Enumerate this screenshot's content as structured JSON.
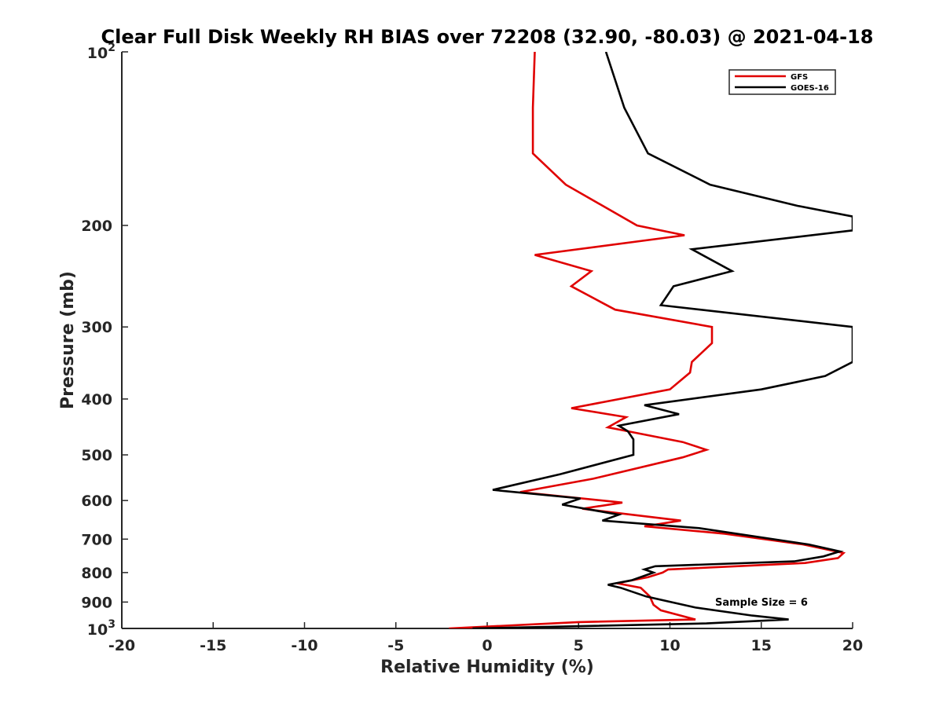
{
  "chart_data": {
    "type": "line",
    "title": "Clear Full Disk Weekly RH BIAS over 72208 (32.90, -80.03) @ 2021-04-18",
    "xlabel": "Relative Humidity (%)",
    "ylabel": "Pressure (mb)",
    "xlim": [
      -20,
      20
    ],
    "ylim": [
      100,
      1000
    ],
    "y_scale": "log",
    "y_reversed": true,
    "x_ticks": [
      "-20",
      "-15",
      "-10",
      "-5",
      "0",
      "5",
      "10",
      "15",
      "20"
    ],
    "y_ticks": [
      {
        "value": 100,
        "base": "10",
        "exp": "2"
      },
      {
        "value": 200,
        "label": "200"
      },
      {
        "value": 300,
        "label": "300"
      },
      {
        "value": 400,
        "label": "400"
      },
      {
        "value": 500,
        "label": "500"
      },
      {
        "value": 600,
        "label": "600"
      },
      {
        "value": 700,
        "label": "700"
      },
      {
        "value": 800,
        "label": "800"
      },
      {
        "value": 900,
        "label": "900"
      },
      {
        "value": 1000,
        "base": "10",
        "exp": "3"
      }
    ],
    "grid": false,
    "legend": "top-right",
    "annotation": "Sample Size = 6",
    "series": [
      {
        "name": "GFS",
        "color": "#e00000",
        "points": [
          [
            2.6,
            100
          ],
          [
            2.5,
            125
          ],
          [
            2.5,
            150
          ],
          [
            4.3,
            170
          ],
          [
            8.2,
            200
          ],
          [
            10.8,
            208
          ],
          [
            2.6,
            225
          ],
          [
            5.7,
            240
          ],
          [
            4.6,
            255
          ],
          [
            7.0,
            280
          ],
          [
            12.3,
            300
          ],
          [
            12.3,
            320
          ],
          [
            11.2,
            345
          ],
          [
            11.1,
            360
          ],
          [
            10.0,
            385
          ],
          [
            4.6,
            415
          ],
          [
            7.6,
            430
          ],
          [
            6.6,
            448
          ],
          [
            7.7,
            455
          ],
          [
            10.7,
            475
          ],
          [
            12.0,
            490
          ],
          [
            10.7,
            505
          ],
          [
            5.8,
            550
          ],
          [
            1.8,
            580
          ],
          [
            7.4,
            605
          ],
          [
            5.2,
            620
          ],
          [
            10.6,
            650
          ],
          [
            8.6,
            665
          ],
          [
            13.0,
            685
          ],
          [
            17.3,
            715
          ],
          [
            19.5,
            740
          ],
          [
            19.2,
            755
          ],
          [
            17.4,
            770
          ],
          [
            9.9,
            790
          ],
          [
            9.6,
            800
          ],
          [
            8.8,
            815
          ],
          [
            7.1,
            835
          ],
          [
            8.4,
            850
          ],
          [
            8.9,
            880
          ],
          [
            9.1,
            910
          ],
          [
            9.5,
            930
          ],
          [
            11.4,
            965
          ],
          [
            5.0,
            975
          ],
          [
            -2.1,
            1000
          ]
        ]
      },
      {
        "name": "GOES-16",
        "color": "#000000",
        "points": [
          [
            6.5,
            100
          ],
          [
            7.5,
            125
          ],
          [
            8.8,
            150
          ],
          [
            12.2,
            170
          ],
          [
            17.0,
            185
          ],
          [
            20.0,
            193
          ],
          [
            20.0,
            204
          ],
          [
            11.2,
            220
          ],
          [
            13.4,
            240
          ],
          [
            10.2,
            255
          ],
          [
            9.5,
            275
          ],
          [
            20.0,
            300
          ],
          [
            20.0,
            345
          ],
          [
            18.5,
            365
          ],
          [
            15.0,
            385
          ],
          [
            8.6,
            410
          ],
          [
            10.5,
            425
          ],
          [
            7.2,
            445
          ],
          [
            7.7,
            455
          ],
          [
            8.0,
            470
          ],
          [
            8.0,
            500
          ],
          [
            4.0,
            540
          ],
          [
            0.3,
            575
          ],
          [
            5.1,
            595
          ],
          [
            4.1,
            610
          ],
          [
            7.2,
            635
          ],
          [
            6.3,
            650
          ],
          [
            11.6,
            670
          ],
          [
            17.6,
            715
          ],
          [
            19.3,
            735
          ],
          [
            18.4,
            750
          ],
          [
            16.8,
            765
          ],
          [
            9.2,
            780
          ],
          [
            8.6,
            790
          ],
          [
            9.1,
            800
          ],
          [
            7.9,
            825
          ],
          [
            6.6,
            840
          ],
          [
            7.3,
            850
          ],
          [
            8.7,
            880
          ],
          [
            11.4,
            920
          ],
          [
            14.5,
            950
          ],
          [
            16.5,
            965
          ],
          [
            12.0,
            980
          ],
          [
            -0.8,
            1000
          ]
        ]
      }
    ]
  }
}
